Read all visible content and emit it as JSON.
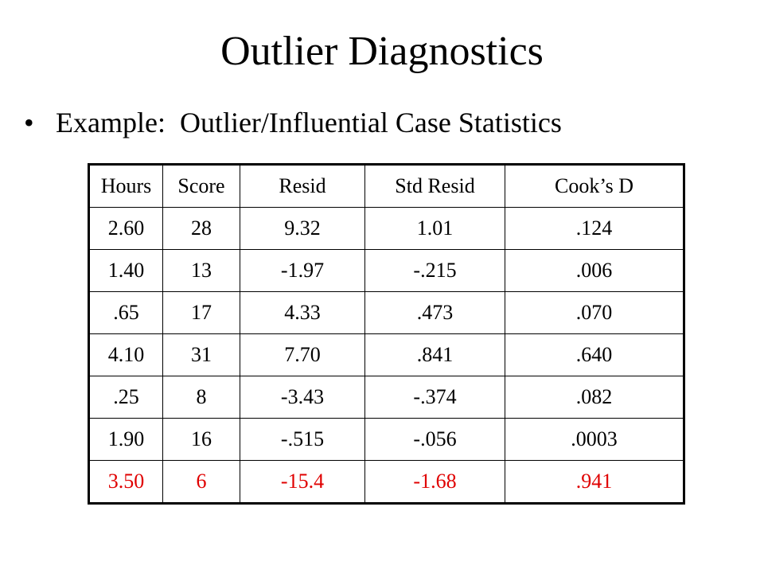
{
  "header": {
    "title": "Outlier Diagnostics",
    "bullet": "Example:  Outlier/Influential Case Statistics"
  },
  "table": {
    "columns": [
      "Hours",
      "Score",
      "Resid",
      "Std Resid",
      "Cook’s D"
    ],
    "rows": [
      [
        "2.60",
        "28",
        "9.32",
        "1.01",
        ".124"
      ],
      [
        "1.40",
        "13",
        "-1.97",
        "-.215",
        ".006"
      ],
      [
        ".65",
        "17",
        "4.33",
        ".473",
        ".070"
      ],
      [
        "4.10",
        "31",
        "7.70",
        ".841",
        ".640"
      ],
      [
        ".25",
        "8",
        "-3.43",
        "-.374",
        ".082"
      ],
      [
        "1.90",
        "16",
        "-.515",
        "-.056",
        ".0003"
      ],
      [
        "3.50",
        "6",
        "-15.4",
        "-1.68",
        ".941"
      ]
    ]
  }
}
